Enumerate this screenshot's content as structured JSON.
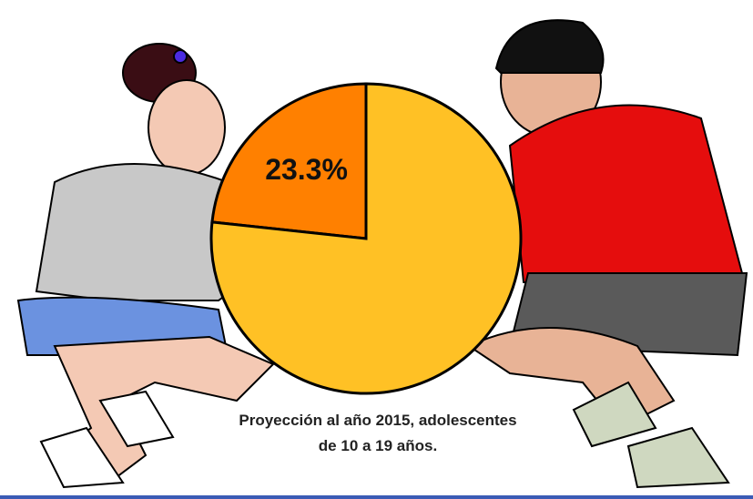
{
  "chart_data": {
    "type": "pie",
    "values": [
      23.3,
      76.7
    ],
    "value_labels": [
      "23.3%",
      null
    ],
    "colors": [
      "#ff8000",
      "#ffc125"
    ],
    "annotation": [
      "Proyección al año 2015, adolescentes",
      "de 10 a 19 años."
    ]
  }
}
